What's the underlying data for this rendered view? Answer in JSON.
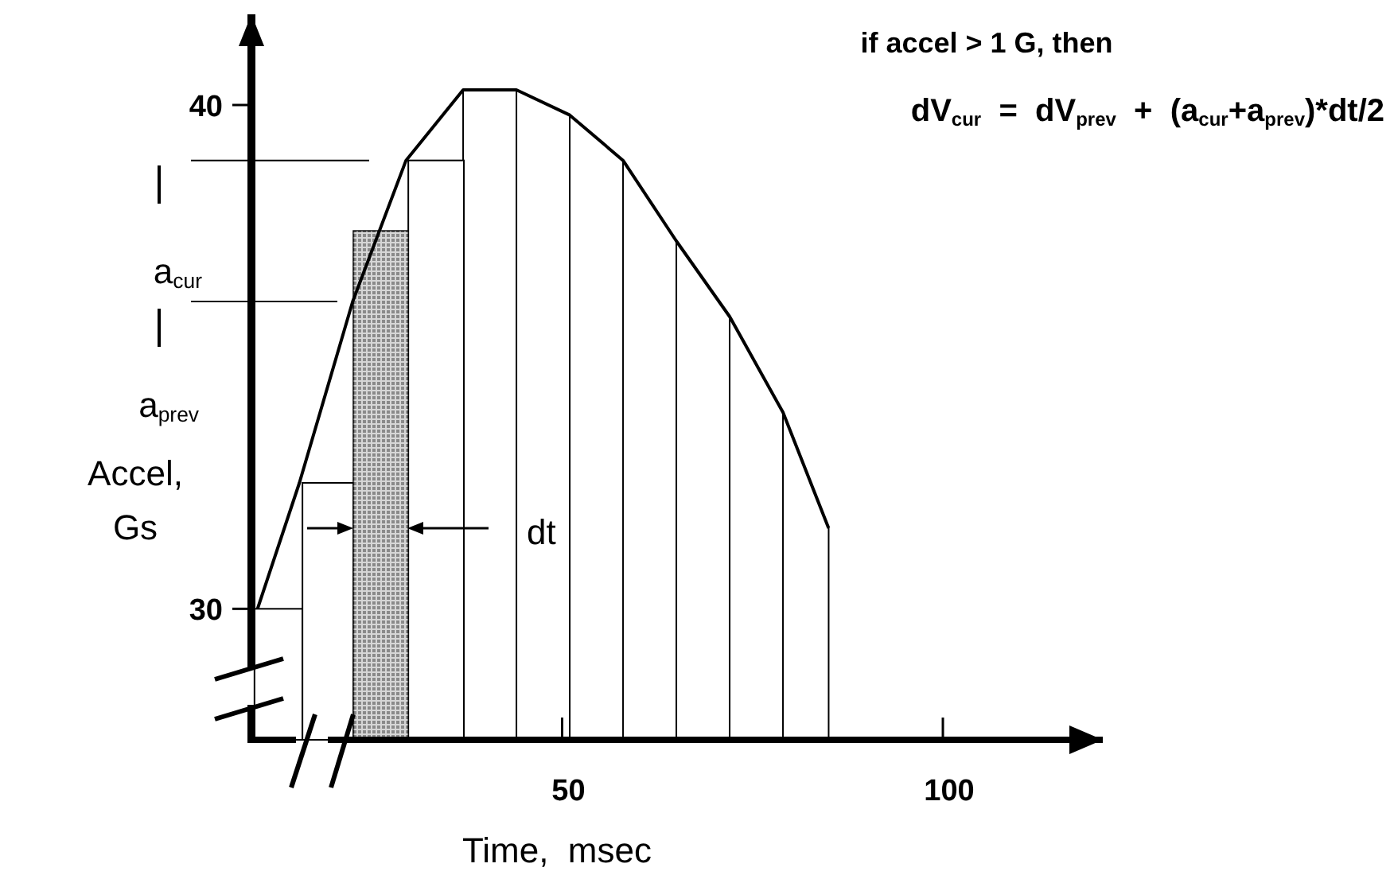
{
  "chart_data": {
    "type": "line",
    "title": "if accel > 1 G, then",
    "subtitle": "dV$_{cur}$  =  dV$_{prev}$  +  (a$_{cur}$+a$_{prev}$)*dt/2",
    "xlabel": "Time,  msec",
    "ylabel": "Accel,\nGs",
    "xlim": [
      9.2,
      121
    ],
    "ylim": [
      27.4,
      41.8
    ],
    "xticks": [
      50,
      100
    ],
    "yticks": [
      30,
      40
    ],
    "grid": false,
    "marker": "none",
    "line_style": "solid",
    "series": [
      {
        "type": "line",
        "color": "#000000",
        "x": [
          10,
          15.5,
          22.5,
          29.5,
          37,
          44,
          51,
          58,
          65,
          72,
          79,
          85
        ],
        "values": [
          30,
          32.5,
          36.1,
          38.9,
          40.3,
          40.3,
          39.8,
          38.9,
          37.3,
          35.8,
          33.9,
          31.6
        ]
      },
      {
        "type": "bar",
        "colors": [
          "#ffffff",
          "#ffffff",
          "#b5b5b5",
          "#ffffff"
        ],
        "x": [
          12.75,
          19.05,
          26.15,
          33.45
        ],
        "values": [
          30,
          32.5,
          37.5,
          38.9
        ]
      }
    ],
    "ref_lines": [
      {
        "axis": "y",
        "value": 38.9
      },
      {
        "axis": "y",
        "value": 36.1
      },
      {
        "axis": "x",
        "value": 37
      },
      {
        "axis": "x",
        "value": 44
      },
      {
        "axis": "x",
        "value": 51
      },
      {
        "axis": "x",
        "value": 58
      },
      {
        "axis": "x",
        "value": 65
      },
      {
        "axis": "x",
        "value": 72
      },
      {
        "axis": "x",
        "value": 79
      },
      {
        "axis": "x",
        "value": 85
      }
    ],
    "annotations": [
      "a$_{cur}$",
      "a$_{prev}$",
      "dt"
    ]
  }
}
